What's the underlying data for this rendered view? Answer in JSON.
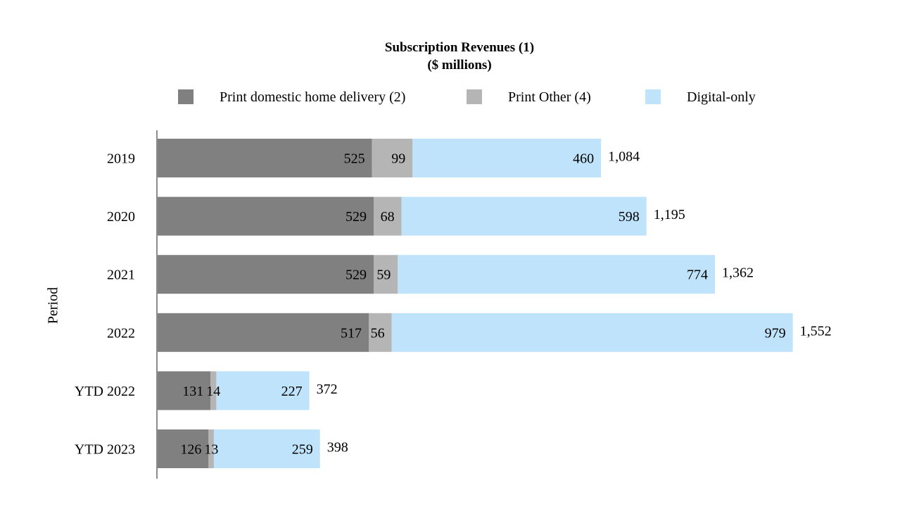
{
  "chart_data": {
    "type": "bar",
    "orientation": "horizontal",
    "stacked": true,
    "title": "Subscription Revenues (1)",
    "subtitle": "($ millions)",
    "ylabel": "Period",
    "xlabel": "",
    "categories": [
      "2019",
      "2020",
      "2021",
      "2022",
      "YTD 2022",
      "YTD 2023"
    ],
    "series": [
      {
        "name": "Print domestic home delivery (2)",
        "color": "#808080",
        "values": [
          525,
          529,
          529,
          517,
          131,
          126
        ],
        "labels": [
          "525",
          "529",
          "529",
          "517",
          "131",
          "126"
        ]
      },
      {
        "name": "Print Other (4)",
        "color": "#b5b5b5",
        "values": [
          99,
          68,
          59,
          56,
          14,
          13
        ],
        "labels": [
          "99",
          "68",
          "59",
          "56",
          "14",
          "13"
        ]
      },
      {
        "name": "Digital-only",
        "color": "#bfe3fb",
        "values": [
          460,
          598,
          774,
          979,
          227,
          259
        ],
        "labels": [
          "460",
          "598",
          "774",
          "979",
          "227",
          "259"
        ]
      }
    ],
    "totals": [
      1084,
      1195,
      1362,
      1552,
      372,
      398
    ],
    "total_labels": [
      "1,084",
      "1,195",
      "1,362",
      "1,552",
      "372",
      "398"
    ],
    "xlim": [
      0,
      1552
    ],
    "legend_position": "top",
    "grid": false
  }
}
